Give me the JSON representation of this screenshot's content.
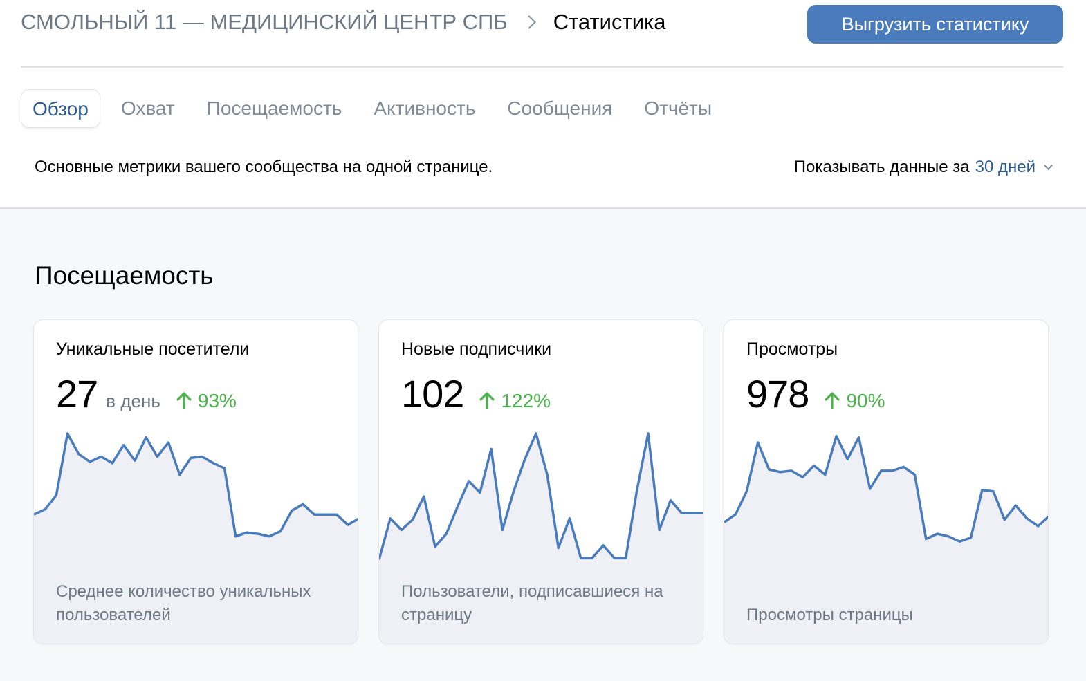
{
  "header": {
    "group_name": "СМОЛЬНЫЙ 11 — МЕДИЦИНСКИЙ ЦЕНТР СПБ",
    "current_page": "Статистика",
    "export_label": "Выгрузить статистику"
  },
  "tabs": [
    {
      "label": "Обзор",
      "active": true
    },
    {
      "label": "Охват",
      "active": false
    },
    {
      "label": "Посещаемость",
      "active": false
    },
    {
      "label": "Активность",
      "active": false
    },
    {
      "label": "Сообщения",
      "active": false
    },
    {
      "label": "Отчёты",
      "active": false
    }
  ],
  "subtitle": "Основные метрики вашего сообщества на одной странице.",
  "period": {
    "label": "Показывать данные за",
    "value": "30 дней"
  },
  "section": {
    "title": "Посещаемость"
  },
  "cards": [
    {
      "title": "Уникальные посетители",
      "value": "27",
      "unit": "в день",
      "trend": "93%",
      "description": "Среднее количество уникальных пользователей",
      "series": [
        37,
        41,
        52,
        100,
        84,
        78,
        82,
        77,
        91,
        79,
        97,
        82,
        93,
        68,
        81,
        82,
        77,
        73,
        20,
        23,
        22,
        20,
        24,
        40,
        45,
        37,
        37,
        37,
        29,
        34
      ]
    },
    {
      "title": "Новые подписчики",
      "value": "102",
      "unit": "",
      "trend": "122%",
      "description": "Пользователи, подписавшиеся на страницу",
      "series": [
        2,
        34,
        25,
        33,
        51,
        12,
        22,
        43,
        63,
        54,
        88,
        25,
        55,
        80,
        100,
        68,
        11,
        34,
        3,
        3,
        13,
        3,
        3,
        56,
        100,
        25,
        48,
        38,
        38,
        38
      ]
    },
    {
      "title": "Просмотры",
      "value": "978",
      "unit": "",
      "trend": "90%",
      "description": "Просмотры страницы",
      "series": [
        31,
        37,
        55,
        93,
        72,
        70,
        71,
        66,
        75,
        68,
        98,
        80,
        97,
        57,
        71,
        71,
        74,
        68,
        18,
        22,
        20,
        16,
        19,
        56,
        55,
        33,
        44,
        34,
        28,
        36
      ]
    }
  ],
  "colors": {
    "accent": "#4a7cbd",
    "link": "#2d5c92",
    "trend_up": "#4bb34b",
    "chart_line": "#4a7cbd",
    "chart_fill": "#eef0f5"
  },
  "icons": {
    "breadcrumb_separator": "chevron-right-icon",
    "period_dropdown": "chevron-down-icon",
    "trend": "arrow-up-icon"
  }
}
